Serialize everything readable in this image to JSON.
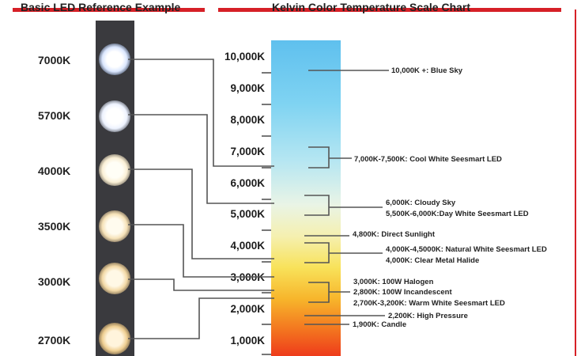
{
  "header": {
    "left_title": "Basic LED Reference Example",
    "right_title": "Kelvin Color Temperature Scale Chart"
  },
  "colors": {
    "accent": "#d62027",
    "strip": "#3a3a3e"
  },
  "led_labels": [
    "7000K",
    "5700K",
    "4000K",
    "3500K",
    "3000K",
    "2700K"
  ],
  "scale_labels": [
    "10,000K",
    "9,000K",
    "8,000K",
    "7,000K",
    "6,000K",
    "5,000K",
    "4,000K",
    "3,000K",
    "2,000K",
    "1,000K"
  ],
  "annotations": [
    "10,000K +: Blue Sky",
    "7,000K-7,500K: Cool White Seesmart LED",
    "6,000K: Cloudy Sky",
    "5,500K-6,000K:Day White Seesmart LED",
    "4,800K: Direct Sunlight",
    "4,000K-4,5000K: Natural White Seesmart LED",
    "4,000K: Clear Metal Halide",
    "3,000K: 100W Halogen",
    "2,800K: 100W Incandescent",
    "2,700K-3,200K: Warm White Seesmart LED",
    "2,200K: High Pressure",
    "1,900K: Candle"
  ]
}
